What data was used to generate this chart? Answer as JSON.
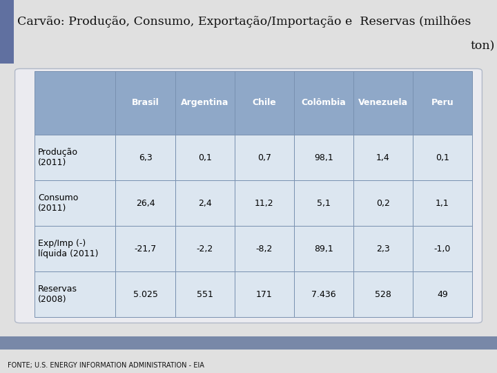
{
  "title_line1": "Carvão: Produção, Consumo, Exportação/Importação e  Reservas (milhões",
  "title_line2": "ton)",
  "columns": [
    "",
    "Brasil",
    "Argentina",
    "Chile",
    "Colômbia",
    "Venezuela",
    "Peru"
  ],
  "rows": [
    [
      "Produção\n(2011)",
      "6,3",
      "0,1",
      "0,7",
      "98,1",
      "1,4",
      "0,1"
    ],
    [
      "Consumo\n(2011)",
      "26,4",
      "2,4",
      "11,2",
      "5,1",
      "0,2",
      "1,1"
    ],
    [
      "Exp/Imp (-)\nlíquida (2011)",
      "-21,7",
      "-2,2",
      "-8,2",
      "89,1",
      "2,3",
      "-1,0"
    ],
    [
      "Reservas\n(2008)",
      "5.025",
      "551",
      "171",
      "7.436",
      "528",
      "49"
    ]
  ],
  "header_bg": "#8fa8c8",
  "data_bg": "#dce6f0",
  "outer_bg": "#e0e0e0",
  "title_bg": "#d8d8e0",
  "accent_color": "#6070a0",
  "footer_strip_color": "#7888a8",
  "footer_text": "FONTE; U.S. ENERGY INFORMATION ADMINISTRATION - EIA",
  "table_border_color": "#7890b0",
  "header_text_color": "#ffffff",
  "row_text_color": "#000000",
  "title_fontsize": 12.5,
  "table_fontsize": 9,
  "footer_fontsize": 7
}
